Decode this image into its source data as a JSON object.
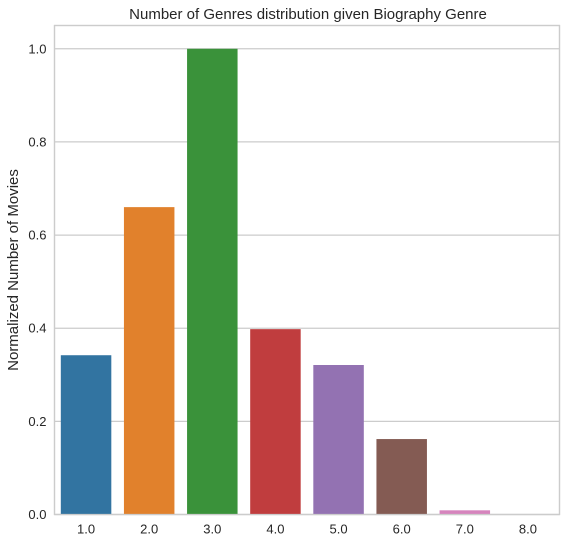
{
  "chart_data": {
    "type": "bar",
    "title": "Number of Genres distribution given Biography Genre",
    "xlabel": "",
    "ylabel": "Normalized Number of Movies",
    "categories": [
      "1.0",
      "2.0",
      "3.0",
      "4.0",
      "5.0",
      "6.0",
      "7.0",
      "8.0"
    ],
    "values": [
      0.342,
      0.66,
      1.0,
      0.398,
      0.321,
      0.162,
      0.009,
      0.001
    ],
    "colors": [
      "#3274a1",
      "#e1812c",
      "#3a923a",
      "#c03d3e",
      "#9372b2",
      "#845b53",
      "#d684bd",
      "#7f7f7f"
    ],
    "ylim": [
      0,
      1.05
    ],
    "yticks": [
      0.0,
      0.2,
      0.4,
      0.6,
      0.8,
      1.0
    ],
    "ytick_labels": [
      "0.0",
      "0.2",
      "0.4",
      "0.6",
      "0.8",
      "1.0"
    ],
    "grid": "horizontal",
    "style": "whitegrid",
    "legend": "none"
  }
}
